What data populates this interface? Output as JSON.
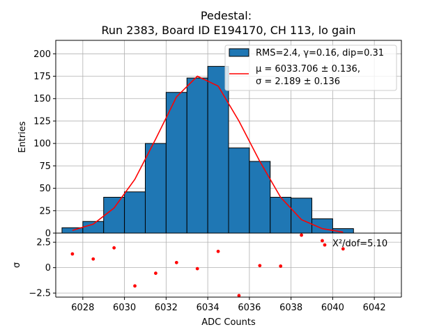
{
  "chart_data": {
    "type": "bar",
    "title_line1": "Pedestal:",
    "title_line2": "Run 2383, Board ID E194170, CH 113, lo gain",
    "xlabel": "ADC Counts",
    "ylabel_top": "Entries",
    "ylabel_bottom": "σ",
    "xlim": [
      6026.7,
      6043.3
    ],
    "ylim_top": [
      0,
      215
    ],
    "ylim_bottom": [
      -2.9,
      3.4
    ],
    "x_ticks": [
      6028,
      6030,
      6032,
      6034,
      6036,
      6038,
      6040,
      6042
    ],
    "y_ticks_top": [
      0,
      25,
      50,
      75,
      100,
      125,
      150,
      175,
      200
    ],
    "y_ticks_bottom": [
      -2.5,
      0.0,
      2.5
    ],
    "grid": true,
    "histogram": {
      "bin_edges": [
        6027,
        6028,
        6029,
        6030,
        6031,
        6032,
        6033,
        6034,
        6035,
        6036,
        6037,
        6038,
        6039,
        6040,
        6041
      ],
      "counts": [
        6,
        13,
        40,
        46,
        100,
        157,
        173,
        186,
        95,
        80,
        40,
        39,
        16,
        5
      ],
      "color": "#1f77b4",
      "edge_color": "#000000"
    },
    "fit_curve": {
      "color": "#ff0000",
      "x": [
        6027.5,
        6028.5,
        6029.5,
        6030.5,
        6031.5,
        6032.5,
        6033.5,
        6034.5,
        6035.5,
        6036.5,
        6037.5,
        6038.5,
        6039.5,
        6040.5
      ],
      "y": [
        3,
        10,
        28,
        60,
        105,
        152,
        175,
        164,
        125,
        80,
        40,
        15,
        5,
        1
      ]
    },
    "residuals": {
      "color": "#ff0000",
      "x": [
        6027.5,
        6028.5,
        6029.5,
        6030.5,
        6031.5,
        6032.5,
        6033.5,
        6034.5,
        6035.5,
        6036.5,
        6037.5,
        6038.5,
        6039.5,
        6040.5
      ],
      "y": [
        1.35,
        0.85,
        1.95,
        -1.8,
        -0.55,
        0.5,
        -0.1,
        1.6,
        -2.75,
        0.2,
        0.15,
        3.2,
        2.65,
        1.85
      ]
    },
    "legend": {
      "placement": "top-right",
      "hist_label": "RMS=2.4, γ=0.16, dip=0.31",
      "fit_label_line1": "μ = 6033.706 ± 0.136,",
      "fit_label_line2": "σ = 2.189 ± 0.136"
    },
    "annotation": "X²/dof=5.10"
  }
}
